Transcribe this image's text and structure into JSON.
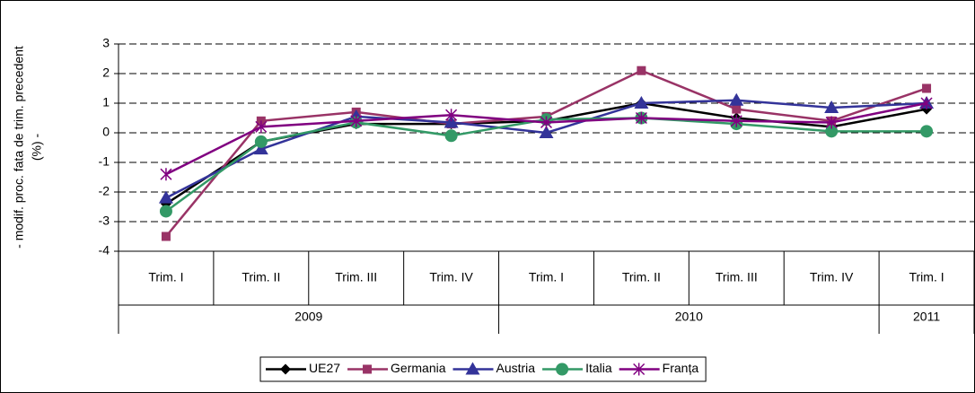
{
  "chart_data": {
    "type": "line",
    "y_label": [
      "- modif. proc. fata de trim. precedent",
      "(%) -"
    ],
    "categories": [
      "Trim. I",
      "Trim. II",
      "Trim. III",
      "Trim. IV",
      "Trim. I",
      "Trim. II",
      "Trim. III",
      "Trim. IV",
      "Trim. I"
    ],
    "category_groups": [
      {
        "label": "2009",
        "count": 4
      },
      {
        "label": "2010",
        "count": 4
      },
      {
        "label": "2011",
        "count": 1
      }
    ],
    "series": [
      {
        "name": "UE27",
        "color": "#000000",
        "marker": "diamond",
        "values": [
          -2.4,
          -0.3,
          0.3,
          0.3,
          0.4,
          1.0,
          0.5,
          0.2,
          0.8
        ]
      },
      {
        "name": "Germania",
        "color": "#993366",
        "marker": "square",
        "values": [
          -3.5,
          0.4,
          0.7,
          0.3,
          0.55,
          2.1,
          0.8,
          0.4,
          1.5
        ]
      },
      {
        "name": "Austria",
        "color": "#333399",
        "marker": "triangle",
        "values": [
          -2.2,
          -0.55,
          0.55,
          0.35,
          0.0,
          1.0,
          1.1,
          0.85,
          1.0
        ]
      },
      {
        "name": "Italia",
        "color": "#339966",
        "marker": "circle",
        "values": [
          -2.65,
          -0.3,
          0.35,
          -0.1,
          0.45,
          0.5,
          0.3,
          0.05,
          0.05
        ]
      },
      {
        "name": "Franța",
        "color": "#800080",
        "marker": "star",
        "values": [
          -1.4,
          0.2,
          0.4,
          0.6,
          0.35,
          0.5,
          0.4,
          0.35,
          1.0
        ]
      }
    ],
    "ylim": [
      -4,
      3
    ],
    "yticks": [
      3,
      2,
      1,
      0,
      -1,
      -2,
      -3,
      -4
    ],
    "grid": true,
    "legend": "bottom"
  }
}
